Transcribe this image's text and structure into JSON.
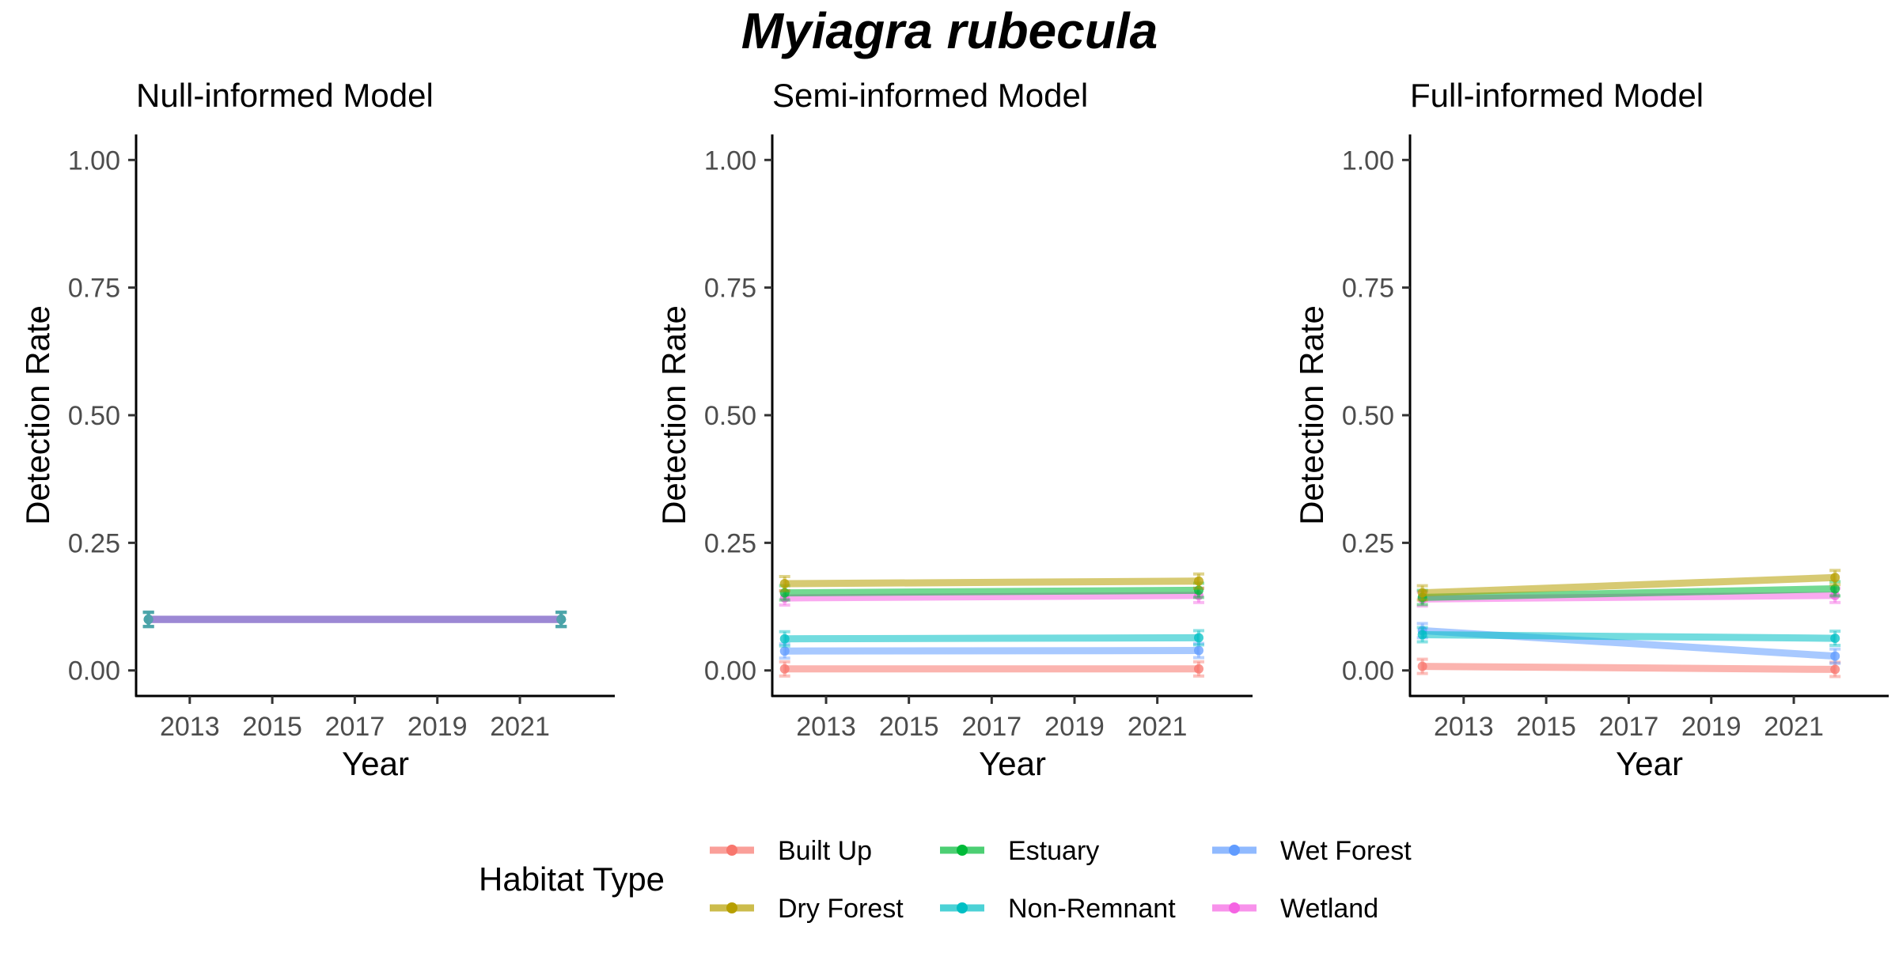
{
  "title": "Myiagra rubecula",
  "colors": {
    "Built Up": "#F8766D",
    "Dry Forest": "#B79F00",
    "Estuary": "#00BA38",
    "Non-Remnant": "#00BFC4",
    "Wet Forest": "#619CFF",
    "Wetland": "#F564E3",
    "null_line": "#9B87D4",
    "null_point": "#4AA3A8"
  },
  "legend": {
    "title": "Habitat Type",
    "position": "bottom",
    "items": [
      "Built Up",
      "Dry Forest",
      "Estuary",
      "Non-Remnant",
      "Wet Forest",
      "Wetland"
    ]
  },
  "chart_data": [
    {
      "type": "line",
      "title": "Null-informed Model",
      "xlabel": "Year",
      "ylabel": "Detection Rate",
      "xlim": [
        2011.7,
        2023.3
      ],
      "ylim": [
        -0.05,
        1.05
      ],
      "xticks": [
        2013,
        2015,
        2017,
        2019,
        2021
      ],
      "yticks": [
        0.0,
        0.25,
        0.5,
        0.75,
        1.0
      ],
      "yticklabels": [
        "0.00",
        "0.25",
        "0.50",
        "0.75",
        "1.00"
      ],
      "grid": false,
      "series": [
        {
          "habitat": "Built Up",
          "x": [
            2012,
            2022
          ],
          "y": [
            0.1,
            0.1
          ]
        },
        {
          "habitat": "Dry Forest",
          "x": [
            2012,
            2022
          ],
          "y": [
            0.1,
            0.1
          ]
        },
        {
          "habitat": "Estuary",
          "x": [
            2012,
            2022
          ],
          "y": [
            0.1,
            0.1
          ]
        },
        {
          "habitat": "Non-Remnant",
          "x": [
            2012,
            2022
          ],
          "y": [
            0.1,
            0.1
          ]
        },
        {
          "habitat": "Wet Forest",
          "x": [
            2012,
            2022
          ],
          "y": [
            0.1,
            0.1
          ]
        },
        {
          "habitat": "Wetland",
          "x": [
            2012,
            2022
          ],
          "y": [
            0.1,
            0.1
          ]
        }
      ]
    },
    {
      "type": "line",
      "title": "Semi-informed Model",
      "xlabel": "Year",
      "ylabel": "Detection Rate",
      "xlim": [
        2011.7,
        2023.3
      ],
      "ylim": [
        -0.05,
        1.05
      ],
      "xticks": [
        2013,
        2015,
        2017,
        2019,
        2021
      ],
      "yticks": [
        0.0,
        0.25,
        0.5,
        0.75,
        1.0
      ],
      "yticklabels": [
        "0.00",
        "0.25",
        "0.50",
        "0.75",
        "1.00"
      ],
      "grid": false,
      "series": [
        {
          "habitat": "Built Up",
          "x": [
            2012,
            2022
          ],
          "y": [
            0.003,
            0.003
          ]
        },
        {
          "habitat": "Wet Forest",
          "x": [
            2012,
            2022
          ],
          "y": [
            0.038,
            0.039
          ]
        },
        {
          "habitat": "Non-Remnant",
          "x": [
            2012,
            2022
          ],
          "y": [
            0.062,
            0.064
          ]
        },
        {
          "habitat": "Wetland",
          "x": [
            2012,
            2022
          ],
          "y": [
            0.142,
            0.147
          ]
        },
        {
          "habitat": "Estuary",
          "x": [
            2012,
            2022
          ],
          "y": [
            0.152,
            0.157
          ]
        },
        {
          "habitat": "Dry Forest",
          "x": [
            2012,
            2022
          ],
          "y": [
            0.17,
            0.175
          ]
        }
      ]
    },
    {
      "type": "line",
      "title": "Full-informed Model",
      "xlabel": "Year",
      "ylabel": "Detection Rate",
      "xlim": [
        2011.7,
        2023.3
      ],
      "ylim": [
        -0.05,
        1.05
      ],
      "xticks": [
        2013,
        2015,
        2017,
        2019,
        2021
      ],
      "yticks": [
        0.0,
        0.25,
        0.5,
        0.75,
        1.0
      ],
      "yticklabels": [
        "0.00",
        "0.25",
        "0.50",
        "0.75",
        "1.00"
      ],
      "grid": false,
      "series": [
        {
          "habitat": "Built Up",
          "x": [
            2012,
            2022
          ],
          "y": [
            0.008,
            0.002
          ]
        },
        {
          "habitat": "Wet Forest",
          "x": [
            2012,
            2022
          ],
          "y": [
            0.078,
            0.028
          ]
        },
        {
          "habitat": "Non-Remnant",
          "x": [
            2012,
            2022
          ],
          "y": [
            0.07,
            0.063
          ]
        },
        {
          "habitat": "Wetland",
          "x": [
            2012,
            2022
          ],
          "y": [
            0.14,
            0.147
          ]
        },
        {
          "habitat": "Estuary",
          "x": [
            2012,
            2022
          ],
          "y": [
            0.143,
            0.16
          ]
        },
        {
          "habitat": "Dry Forest",
          "x": [
            2012,
            2022
          ],
          "y": [
            0.152,
            0.182
          ]
        }
      ]
    }
  ]
}
